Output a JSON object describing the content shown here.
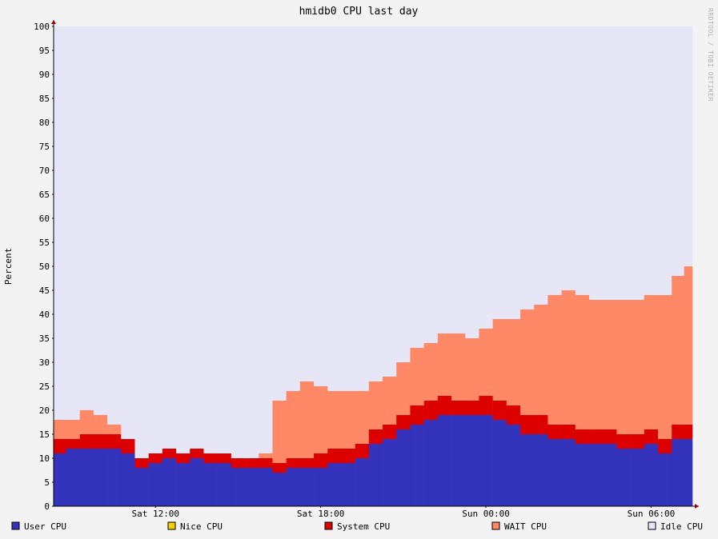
{
  "chart_data": {
    "type": "area",
    "title": "hmidb0 CPU last day",
    "ylabel": "Percent",
    "watermark": "RRDTOOL / TOBI OETIKER",
    "ylim": [
      0,
      100
    ],
    "yticks": [
      0,
      5,
      10,
      15,
      20,
      25,
      30,
      35,
      40,
      45,
      50,
      55,
      60,
      65,
      70,
      75,
      80,
      85,
      90,
      95,
      100
    ],
    "xlim_hours": [
      8.3,
      31.5
    ],
    "xticks": [
      {
        "hour": 12,
        "label": "Sat 12:00"
      },
      {
        "hour": 18,
        "label": "Sat 18:00"
      },
      {
        "hour": 24,
        "label": "Sun 00:00"
      },
      {
        "hour": 30,
        "label": "Sun 06:00"
      }
    ],
    "x_hours": [
      8.5,
      9,
      9.5,
      10,
      10.5,
      11,
      11.5,
      12,
      12.5,
      13,
      13.5,
      14,
      14.5,
      15,
      15.5,
      16,
      16.5,
      17,
      17.5,
      18,
      18.5,
      19,
      19.5,
      20,
      20.5,
      21,
      21.5,
      22,
      22.5,
      23,
      23.5,
      24,
      24.5,
      25,
      25.5,
      26,
      26.5,
      27,
      27.5,
      28,
      28.5,
      29,
      29.5,
      30,
      30.5,
      31,
      31.4
    ],
    "series": [
      {
        "name": "User CPU",
        "color": "#3333bb",
        "values": [
          11,
          12,
          12,
          12,
          12,
          11,
          8,
          9,
          10,
          9,
          10,
          9,
          9,
          8,
          8,
          8,
          7,
          8,
          8,
          8,
          9,
          9,
          10,
          13,
          14,
          16,
          17,
          18,
          19,
          19,
          19,
          19,
          18,
          17,
          15,
          15,
          14,
          14,
          13,
          13,
          13,
          12,
          12,
          13,
          11,
          14,
          14
        ]
      },
      {
        "name": "Nice CPU",
        "color": "#f0d000",
        "values": [
          0,
          0,
          0,
          0,
          0,
          0,
          0,
          0,
          0,
          0,
          0,
          0,
          0,
          0,
          0,
          0,
          0,
          0,
          0,
          0,
          0,
          0,
          0,
          0,
          0,
          0,
          0,
          0,
          0,
          0,
          0,
          0,
          0,
          0,
          0,
          0,
          0,
          0,
          0,
          0,
          0,
          0,
          0,
          0,
          0,
          0,
          0
        ]
      },
      {
        "name": "System CPU",
        "color": "#dd0000",
        "values": [
          3,
          2,
          3,
          3,
          3,
          3,
          2,
          2,
          2,
          2,
          2,
          2,
          2,
          2,
          2,
          2,
          2,
          2,
          2,
          3,
          3,
          3,
          3,
          3,
          3,
          3,
          4,
          4,
          4,
          3,
          3,
          4,
          4,
          4,
          4,
          4,
          3,
          3,
          3,
          3,
          3,
          3,
          3,
          3,
          3,
          3,
          3
        ]
      },
      {
        "name": "WAIT CPU",
        "color": "#ff8866",
        "values": [
          4,
          4,
          5,
          4,
          2,
          0,
          0,
          0,
          0,
          0,
          0,
          0,
          0,
          0,
          0,
          1,
          13,
          14,
          16,
          14,
          12,
          12,
          11,
          10,
          10,
          11,
          12,
          12,
          13,
          14,
          13,
          14,
          17,
          18,
          22,
          23,
          27,
          28,
          28,
          27,
          27,
          28,
          28,
          28,
          30,
          31,
          33
        ]
      },
      {
        "name": "Idle CPU",
        "color": "#e6e6f6",
        "values": [
          82,
          82,
          80,
          81,
          83,
          86,
          90,
          89,
          88,
          89,
          88,
          89,
          89,
          90,
          90,
          89,
          78,
          76,
          74,
          75,
          76,
          76,
          76,
          74,
          73,
          70,
          67,
          66,
          64,
          64,
          65,
          63,
          61,
          61,
          59,
          58,
          56,
          55,
          56,
          57,
          57,
          57,
          57,
          56,
          56,
          52,
          50
        ]
      }
    ],
    "legend_placement": "bottom",
    "grid": true
  }
}
